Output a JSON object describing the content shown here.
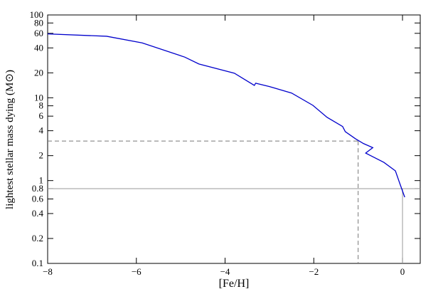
{
  "chart_data": {
    "type": "line",
    "xlabel": "[Fe/H]",
    "ylabel": "lightest stellar mass dying (M⊙)",
    "y_log": true,
    "xlim": [
      -8,
      0.4
    ],
    "ylim": [
      0.1,
      100
    ],
    "xticks": [
      {
        "value": -8,
        "label": "−8"
      },
      {
        "value": -6,
        "label": "−6"
      },
      {
        "value": -4,
        "label": "−4"
      },
      {
        "value": -2,
        "label": "−2"
      },
      0
    ],
    "yticks": [
      0.1,
      0.2,
      0.4,
      0.6,
      0.8,
      1,
      2,
      4,
      6,
      8,
      10,
      20,
      40,
      60,
      80,
      100
    ],
    "series": [
      {
        "color": "#0000cc",
        "x": [
          -8,
          -6.67,
          -5.87,
          -4.91,
          -4.59,
          -3.79,
          -3.34,
          -3.31,
          -2.99,
          -2.5,
          -2.02,
          -1.7,
          -1.35,
          -1.29,
          -1.06,
          -0.88,
          -0.67,
          -0.83,
          -0.74,
          -0.42,
          -0.16,
          -0.06,
          0.05
        ],
        "values": [
          59,
          55.3,
          46,
          31,
          25.6,
          19.8,
          14.1,
          15,
          13.6,
          11.4,
          8.1,
          5.8,
          4.5,
          3.9,
          3.2,
          2.8,
          2.5,
          2.15,
          2.03,
          1.66,
          1.31,
          0.92,
          0.63
        ]
      }
    ],
    "reference_lines": [
      {
        "x": -1,
        "y": 3,
        "dashed": true,
        "full_width": false,
        "color": "#777777"
      },
      {
        "x": 0,
        "y": 0.8,
        "dashed": false,
        "full_width": true,
        "color": "#999999"
      }
    ]
  }
}
